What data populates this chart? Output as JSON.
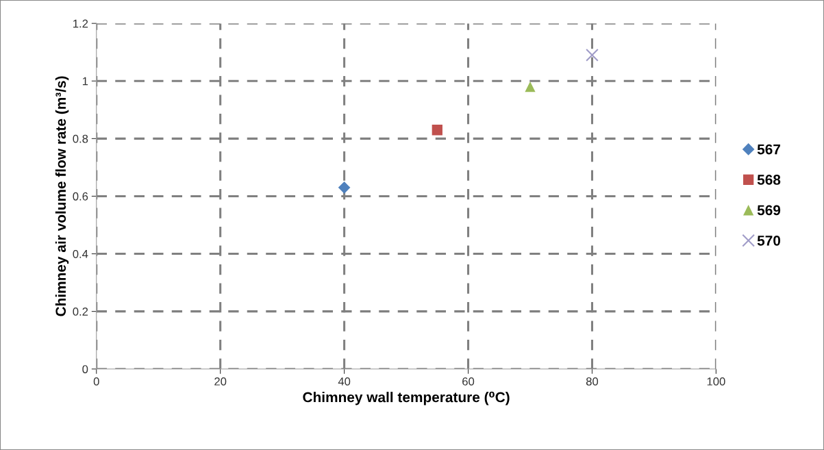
{
  "chart_data": {
    "type": "scatter",
    "xlabel": "Chimney wall temperature (⁰C)",
    "ylabel": "Chimney air volume flow rate (m³/s)",
    "xlim": [
      0,
      100
    ],
    "xticks": [
      0,
      20,
      40,
      60,
      80,
      100
    ],
    "ylim": [
      0,
      1.2
    ],
    "yticks": [
      0,
      0.2,
      0.4,
      0.6,
      0.8,
      1,
      1.2
    ],
    "grid": true,
    "line_style": "dashed",
    "legend": "right",
    "series": [
      {
        "name": "567",
        "color": "#4f81bd",
        "marker": "diamond",
        "x": [
          40
        ],
        "values": [
          0.63
        ]
      },
      {
        "name": "568",
        "color": "#c0504d",
        "marker": "square",
        "x": [
          55
        ],
        "values": [
          0.83
        ]
      },
      {
        "name": "569",
        "color": "#9bbb59",
        "marker": "triangle",
        "x": [
          70
        ],
        "values": [
          0.98
        ]
      },
      {
        "name": "570",
        "color": "#a09cc8",
        "marker": "cross",
        "x": [
          80
        ],
        "values": [
          1.09
        ]
      }
    ]
  }
}
